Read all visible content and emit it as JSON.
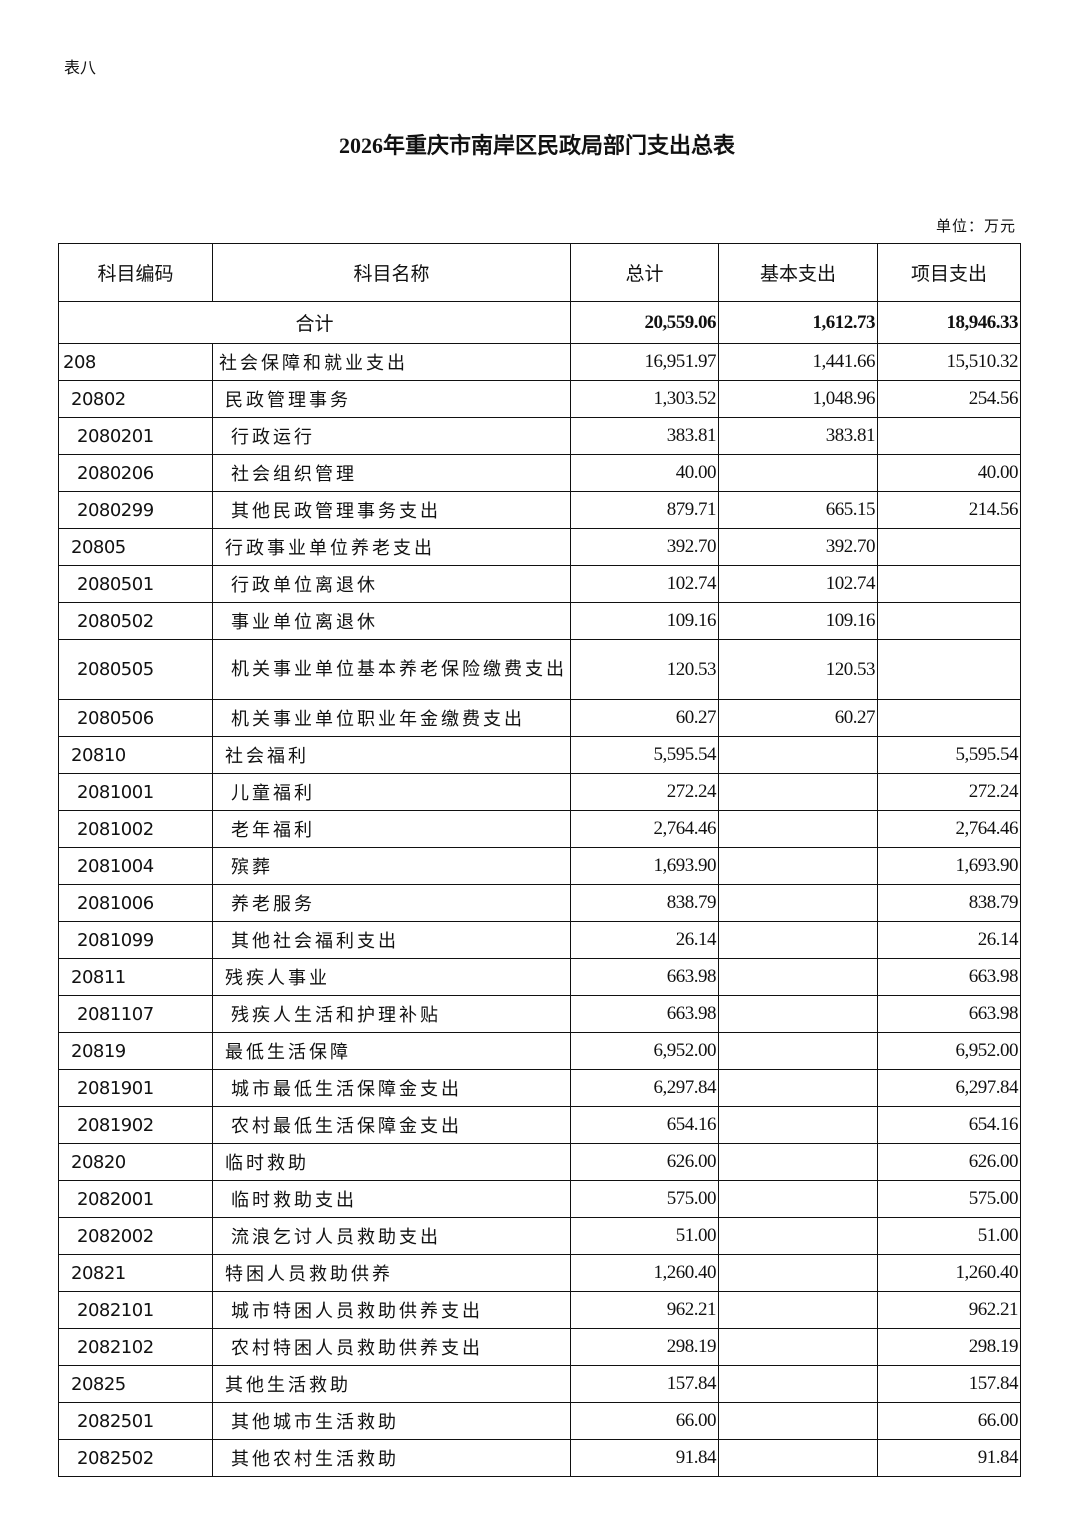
{
  "table_label": "表八",
  "title": "2026年重庆市南岸区民政局部门支出总表",
  "unit": "单位：万元",
  "headers": [
    "科目编码",
    "科目名称",
    "总计",
    "基本支出",
    "项目支出"
  ],
  "total": {
    "label": "合计",
    "total": "20,559.06",
    "basic": "1,612.73",
    "project": "18,946.33"
  },
  "rows": [
    {
      "level": 1,
      "code": "208",
      "name": "社会保障和就业支出",
      "total": "16,951.97",
      "basic": "1,441.66",
      "project": "15,510.32"
    },
    {
      "level": 2,
      "code": "20802",
      "name": "民政管理事务",
      "total": "1,303.52",
      "basic": "1,048.96",
      "project": "254.56"
    },
    {
      "level": 3,
      "code": "2080201",
      "name": "行政运行",
      "total": "383.81",
      "basic": "383.81",
      "project": ""
    },
    {
      "level": 3,
      "code": "2080206",
      "name": "社会组织管理",
      "total": "40.00",
      "basic": "",
      "project": "40.00"
    },
    {
      "level": 3,
      "code": "2080299",
      "name": "其他民政管理事务支出",
      "total": "879.71",
      "basic": "665.15",
      "project": "214.56"
    },
    {
      "level": 2,
      "code": "20805",
      "name": "行政事业单位养老支出",
      "total": "392.70",
      "basic": "392.70",
      "project": ""
    },
    {
      "level": 3,
      "code": "2080501",
      "name": "行政单位离退休",
      "total": "102.74",
      "basic": "102.74",
      "project": ""
    },
    {
      "level": 3,
      "code": "2080502",
      "name": "事业单位离退休",
      "total": "109.16",
      "basic": "109.16",
      "project": ""
    },
    {
      "level": 3,
      "code": "2080505",
      "name": "机关事业单位基本养老保险缴费支出",
      "total": "120.53",
      "basic": "120.53",
      "project": "",
      "wrap": true
    },
    {
      "level": 3,
      "code": "2080506",
      "name": "机关事业单位职业年金缴费支出",
      "total": "60.27",
      "basic": "60.27",
      "project": ""
    },
    {
      "level": 2,
      "code": "20810",
      "name": "社会福利",
      "total": "5,595.54",
      "basic": "",
      "project": "5,595.54"
    },
    {
      "level": 3,
      "code": "2081001",
      "name": "儿童福利",
      "total": "272.24",
      "basic": "",
      "project": "272.24"
    },
    {
      "level": 3,
      "code": "2081002",
      "name": "老年福利",
      "total": "2,764.46",
      "basic": "",
      "project": "2,764.46"
    },
    {
      "level": 3,
      "code": "2081004",
      "name": "殡葬",
      "total": "1,693.90",
      "basic": "",
      "project": "1,693.90"
    },
    {
      "level": 3,
      "code": "2081006",
      "name": "养老服务",
      "total": "838.79",
      "basic": "",
      "project": "838.79"
    },
    {
      "level": 3,
      "code": "2081099",
      "name": "其他社会福利支出",
      "total": "26.14",
      "basic": "",
      "project": "26.14"
    },
    {
      "level": 2,
      "code": "20811",
      "name": "残疾人事业",
      "total": "663.98",
      "basic": "",
      "project": "663.98"
    },
    {
      "level": 3,
      "code": "2081107",
      "name": "残疾人生活和护理补贴",
      "total": "663.98",
      "basic": "",
      "project": "663.98"
    },
    {
      "level": 2,
      "code": "20819",
      "name": "最低生活保障",
      "total": "6,952.00",
      "basic": "",
      "project": "6,952.00"
    },
    {
      "level": 3,
      "code": "2081901",
      "name": "城市最低生活保障金支出",
      "total": "6,297.84",
      "basic": "",
      "project": "6,297.84"
    },
    {
      "level": 3,
      "code": "2081902",
      "name": "农村最低生活保障金支出",
      "total": "654.16",
      "basic": "",
      "project": "654.16"
    },
    {
      "level": 2,
      "code": "20820",
      "name": "临时救助",
      "total": "626.00",
      "basic": "",
      "project": "626.00"
    },
    {
      "level": 3,
      "code": "2082001",
      "name": "临时救助支出",
      "total": "575.00",
      "basic": "",
      "project": "575.00"
    },
    {
      "level": 3,
      "code": "2082002",
      "name": "流浪乞讨人员救助支出",
      "total": "51.00",
      "basic": "",
      "project": "51.00"
    },
    {
      "level": 2,
      "code": "20821",
      "name": "特困人员救助供养",
      "total": "1,260.40",
      "basic": "",
      "project": "1,260.40"
    },
    {
      "level": 3,
      "code": "2082101",
      "name": "城市特困人员救助供养支出",
      "total": "962.21",
      "basic": "",
      "project": "962.21"
    },
    {
      "level": 3,
      "code": "2082102",
      "name": "农村特困人员救助供养支出",
      "total": "298.19",
      "basic": "",
      "project": "298.19"
    },
    {
      "level": 2,
      "code": "20825",
      "name": "其他生活救助",
      "total": "157.84",
      "basic": "",
      "project": "157.84"
    },
    {
      "level": 3,
      "code": "2082501",
      "name": "其他城市生活救助",
      "total": "66.00",
      "basic": "",
      "project": "66.00"
    },
    {
      "level": 3,
      "code": "2082502",
      "name": "其他农村生活救助",
      "total": "91.84",
      "basic": "",
      "project": "91.84"
    }
  ]
}
